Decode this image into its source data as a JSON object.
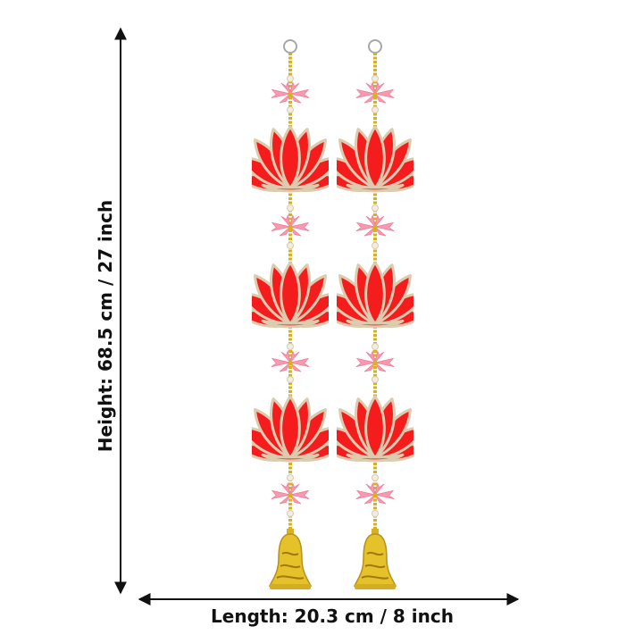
{
  "dimensions": {
    "height_label": "Height: 68.5 cm / 27 inch",
    "length_label": "Length: 20.3 cm / 8 inch"
  },
  "product": {
    "strand_count": 2,
    "lotus_per_strand": 3,
    "colors": {
      "lotus_red": "#f41c1c",
      "lotus_outline": "#dccbae",
      "flower_pink": "#f79ab0",
      "bead_gold": "#d8b21e",
      "bell_gold": "#e6c22a",
      "pearl": "#f3ece0"
    }
  }
}
